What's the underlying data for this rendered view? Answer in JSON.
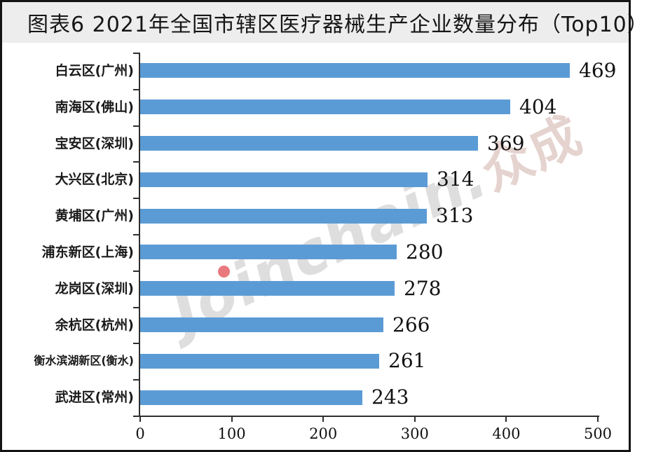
{
  "title": "图表6 2021年全国市辖区医疗器械生产企业数量分布（Top10）",
  "watermark": {
    "latin": "Joinchain.",
    "cjk": "众成"
  },
  "colors": {
    "bar": "#5b9bd5",
    "title_strip": "#ededed",
    "title_text": "#161616",
    "axis": "#2e2e2e",
    "watermark_latin": "#dbdbdb",
    "watermark_cjk": "#e3cfca",
    "watermark_dot": "#e2595c"
  },
  "chart_data": {
    "type": "bar",
    "orientation": "horizontal",
    "title": "图表6 2021年全国市辖区医疗器械生产企业数量分布（Top10）",
    "categories": [
      "白云区(广州)",
      "南海区(佛山)",
      "宝安区(深圳)",
      "大兴区(北京)",
      "黄埔区(广州)",
      "浦东新区(上海)",
      "龙岗区(深圳)",
      "余杭区(杭州)",
      "衡水滨湖新区(衡水)",
      "武进区(常州)"
    ],
    "values": [
      469,
      404,
      369,
      314,
      313,
      280,
      278,
      266,
      261,
      243
    ],
    "value_labels_shown": true,
    "xlabel": "",
    "ylabel": "",
    "xlim": [
      0,
      500
    ],
    "x_ticks": [
      0,
      100,
      200,
      300,
      400,
      500
    ],
    "grid": false,
    "legend": false
  }
}
